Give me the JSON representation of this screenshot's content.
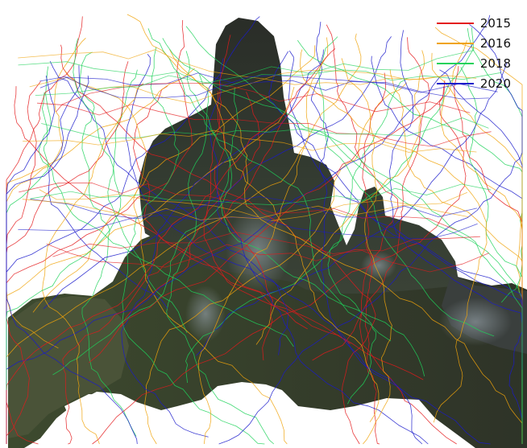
{
  "legend": {
    "items": [
      {
        "label": "2015",
        "color": "#e41a1c"
      },
      {
        "label": "2016",
        "color": "#f0a30a"
      },
      {
        "label": "2018",
        "color": "#1fd25a"
      },
      {
        "label": "2020",
        "color": "#1a1acb"
      }
    ]
  }
}
